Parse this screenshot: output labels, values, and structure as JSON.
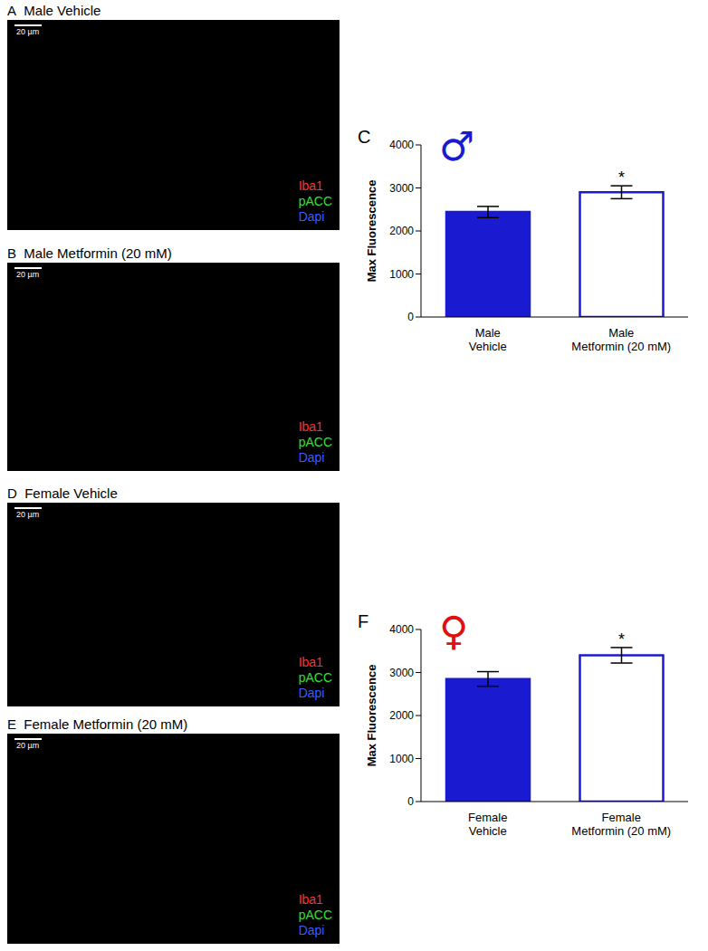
{
  "panels": [
    {
      "letter": "A",
      "title": "Male Vehicle"
    },
    {
      "letter": "B",
      "title": "Male Metformin (20 mM)"
    },
    {
      "letter": "D",
      "title": "Female Vehicle"
    },
    {
      "letter": "E",
      "title": "Female Metformin (20 mM)"
    }
  ],
  "channels": [
    {
      "name": "Iba1",
      "color": "#ff3030"
    },
    {
      "name": "pACC",
      "color": "#30e030"
    },
    {
      "name": "Dapi",
      "color": "#3a5cff"
    }
  ],
  "scale_bar": "20 µm",
  "chart_data": [
    {
      "type": "bar",
      "panel": "C",
      "symbol": "♂",
      "y_label": "Max Fluorescence",
      "categories": [
        "Male Vehicle",
        "Male Metformin (20 mM)"
      ],
      "values": [
        2440,
        2900
      ],
      "errors": [
        130,
        150
      ],
      "colors": [
        "#1a1ad0",
        "#ffffff"
      ],
      "color": "#1a1ad0",
      "ylim": [
        0,
        4000
      ],
      "yticks": [
        0,
        1000,
        2000,
        3000,
        4000
      ],
      "annotations": [
        {
          "index": 1,
          "text": "*"
        }
      ],
      "grid": false
    },
    {
      "type": "bar",
      "panel": "F",
      "symbol": "♀",
      "y_label": "Max Fluorescence",
      "categories": [
        "Female Vehicle",
        "Female Metformin (20 mM)"
      ],
      "values": [
        2850,
        3400
      ],
      "errors": [
        170,
        180
      ],
      "colors": [
        "#1a1ad0",
        "#ffffff"
      ],
      "color": "#1a1ad0",
      "ylim": [
        0,
        4000
      ],
      "yticks": [
        0,
        1000,
        2000,
        3000,
        4000
      ],
      "annotations": [
        {
          "index": 1,
          "text": "*"
        }
      ],
      "grid": false
    }
  ]
}
